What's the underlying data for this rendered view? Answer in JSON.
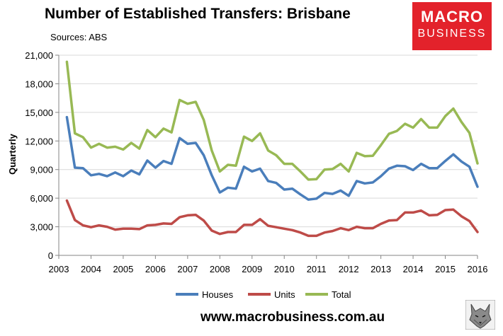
{
  "header": {
    "title": "Number of Established Transfers: Brisbane",
    "sources": "Sources: ABS"
  },
  "logo": {
    "line1": "MACRO",
    "line2": "BUSINESS"
  },
  "footer": {
    "url": "www.macrobusiness.com.au"
  },
  "chart_data": {
    "type": "line",
    "title": "Number of Established Transfers: Brisbane",
    "ylabel": "Quarterly",
    "xlabel": "",
    "ylim": [
      0,
      21000
    ],
    "xlim": [
      2003,
      2016
    ],
    "yticks": [
      0,
      3000,
      6000,
      9000,
      12000,
      15000,
      18000,
      21000
    ],
    "ytick_labels": [
      "0",
      "3,000",
      "6,000",
      "9,000",
      "12,000",
      "15,000",
      "18,000",
      "21,000"
    ],
    "xticks": [
      2003,
      2004,
      2005,
      2006,
      2007,
      2008,
      2009,
      2010,
      2011,
      2012,
      2013,
      2014,
      2015,
      2016
    ],
    "grid": "horizontal",
    "legend": "bottom",
    "x": [
      2003.25,
      2003.5,
      2003.75,
      2004.0,
      2004.25,
      2004.5,
      2004.75,
      2005.0,
      2005.25,
      2005.5,
      2005.75,
      2006.0,
      2006.25,
      2006.5,
      2006.75,
      2007.0,
      2007.25,
      2007.5,
      2007.75,
      2008.0,
      2008.25,
      2008.5,
      2008.75,
      2009.0,
      2009.25,
      2009.5,
      2009.75,
      2010.0,
      2010.25,
      2010.5,
      2010.75,
      2011.0,
      2011.25,
      2011.5,
      2011.75,
      2012.0,
      2012.25,
      2012.5,
      2012.75,
      2013.0,
      2013.25,
      2013.5,
      2013.75,
      2014.0,
      2014.25,
      2014.5,
      2014.75,
      2015.0,
      2015.25,
      2015.5,
      2015.75,
      2016.0
    ],
    "series": [
      {
        "name": "Houses",
        "color": "#4a7ebb",
        "values": [
          14500,
          9200,
          9150,
          8400,
          8550,
          8300,
          8700,
          8300,
          8900,
          8500,
          9950,
          9200,
          9900,
          9600,
          12300,
          11700,
          11800,
          10500,
          8400,
          6600,
          7100,
          7000,
          9300,
          8800,
          9100,
          7800,
          7600,
          6900,
          7000,
          6400,
          5850,
          5950,
          6550,
          6450,
          6800,
          6250,
          7800,
          7550,
          7650,
          8300,
          9100,
          9400,
          9350,
          8950,
          9600,
          9150,
          9150,
          9900,
          10600,
          9850,
          9300,
          7200
        ]
      },
      {
        "name": "Units",
        "color": "#be4b48",
        "values": [
          5750,
          3700,
          3150,
          2950,
          3150,
          3000,
          2700,
          2800,
          2800,
          2750,
          3150,
          3200,
          3350,
          3300,
          4000,
          4200,
          4250,
          3650,
          2600,
          2250,
          2450,
          2450,
          3200,
          3200,
          3800,
          3100,
          2950,
          2800,
          2650,
          2400,
          2050,
          2050,
          2400,
          2550,
          2850,
          2650,
          3000,
          2850,
          2850,
          3300,
          3650,
          3700,
          4500,
          4500,
          4700,
          4200,
          4250,
          4750,
          4800,
          4100,
          3600,
          2450
        ]
      },
      {
        "name": "Total",
        "color": "#98b954",
        "values": [
          20300,
          12800,
          12400,
          11300,
          11700,
          11300,
          11400,
          11100,
          11800,
          11200,
          13150,
          12400,
          13300,
          12900,
          16300,
          15900,
          16100,
          14200,
          11000,
          8800,
          9500,
          9400,
          12450,
          12000,
          12800,
          11000,
          10500,
          9600,
          9600,
          8800,
          7950,
          8000,
          9000,
          9050,
          9600,
          8800,
          10750,
          10400,
          10450,
          11550,
          12750,
          13050,
          13800,
          13400,
          14300,
          13400,
          13400,
          14600,
          15400,
          14000,
          12850,
          9650
        ]
      }
    ]
  }
}
